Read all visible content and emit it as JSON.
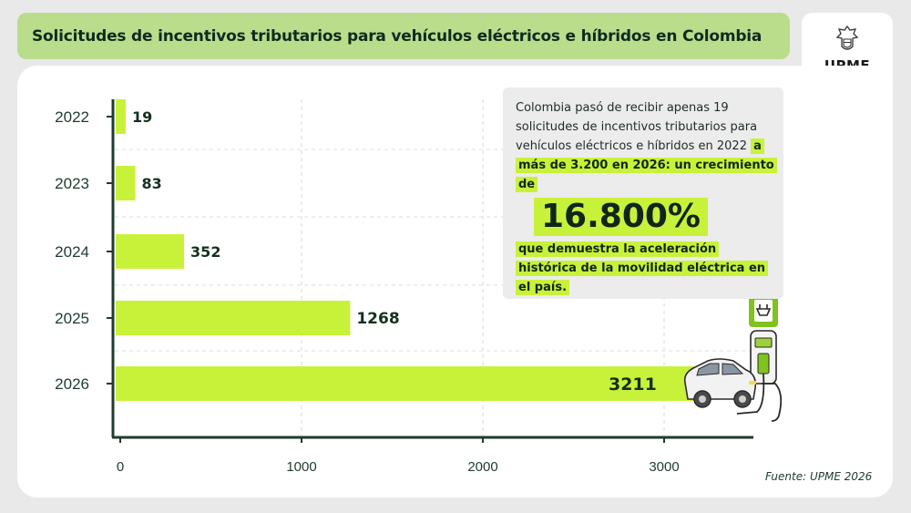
{
  "title": "Solicitudes de incentivos tributarios para vehículos eléctricos e híbridos en Colombia",
  "logo": {
    "text": "UPME",
    "icon": "coat-of-arms-icon",
    "stripe_colors": [
      "#f5c400",
      "#1f3c8a",
      "#d5222b"
    ]
  },
  "colors": {
    "bar": "#c8f23a",
    "axis": "#1f3b2c",
    "banner": "#b9dd8b",
    "highlight": "#c8f23a"
  },
  "chart_data": {
    "type": "bar",
    "orientation": "horizontal",
    "categories": [
      "2022",
      "2023",
      "2024",
      "2025",
      "2026"
    ],
    "values": [
      19,
      83,
      352,
      1268,
      3211
    ],
    "value_labels": [
      "19",
      "83",
      "352",
      "1268",
      "3211"
    ],
    "xticks": [
      "0",
      "1000",
      "2000",
      "3000"
    ],
    "xlim": [
      0,
      3500
    ],
    "grid": true,
    "title": "",
    "xlabel": "",
    "ylabel": ""
  },
  "info": {
    "intro": "Colombia pasó de recibir apenas 19 solicitudes de incentivos tributarios para vehículos eléctricos e híbridos en 2022",
    "highlight1": "a más de 3.200 en 2026: un crecimiento de",
    "big_value": "16.800%",
    "highlight2": "que demuestra la aceleración histórica de la movilidad eléctrica en el país."
  },
  "source": "Fuente: UPME 2026",
  "illustration": {
    "car": "electric-car-icon",
    "charger": "ev-charger-icon"
  }
}
